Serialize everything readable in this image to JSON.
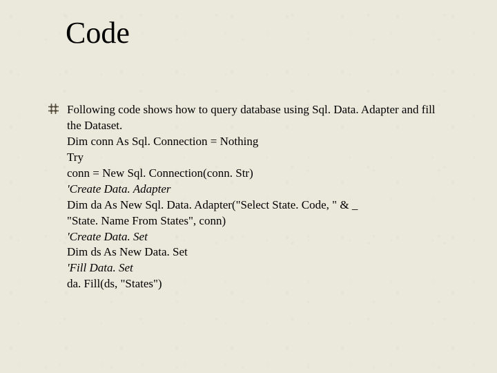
{
  "slide": {
    "title": "Code",
    "title_fontsize": 44,
    "body_fontsize": 17,
    "background_color": "#ebe9dc",
    "text_color": "#000000",
    "bullet_icon_color": "#5a5240",
    "bullet": {
      "lead": " Following code shows how to query database using Sql. Data. Adapter and fill",
      "lines": [
        {
          "text": "the Dataset.",
          "italic": false
        },
        {
          "text": "Dim conn As Sql. Connection = Nothing",
          "italic": false
        },
        {
          "text": "Try",
          "italic": false
        },
        {
          "text": "conn = New Sql. Connection(conn. Str)",
          "italic": false
        },
        {
          "text": "'Create Data. Adapter",
          "italic": true
        },
        {
          "text": "Dim da As New Sql. Data. Adapter(\"Select State. Code, \" & _",
          "italic": false
        },
        {
          "text": "\"State. Name From States\", conn)",
          "italic": false
        },
        {
          "text": "'Create Data. Set",
          "italic": true
        },
        {
          "text": "Dim ds As New Data. Set",
          "italic": false
        },
        {
          "text": "'Fill Data. Set",
          "italic": true
        },
        {
          "text": "da. Fill(ds, \"States\")",
          "italic": false
        }
      ]
    }
  }
}
